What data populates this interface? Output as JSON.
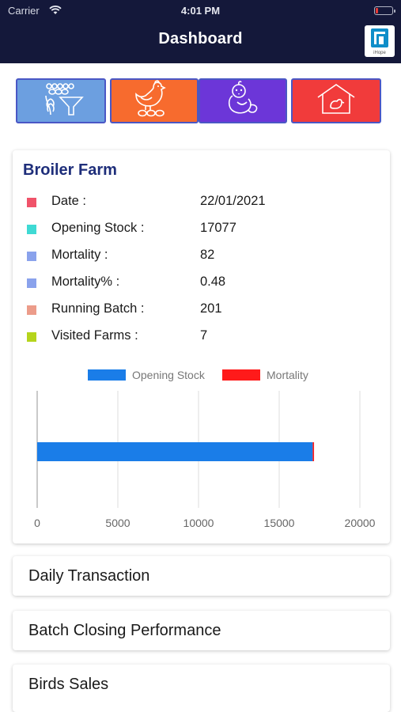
{
  "status_bar": {
    "carrier": "Carrier",
    "time": "4:01 PM"
  },
  "header": {
    "title": "Dashboard",
    "logo_text": "iHope"
  },
  "modules": [
    {
      "name": "feed-module",
      "icon": "feed-funnel-icon",
      "color": "#6c9fe0"
    },
    {
      "name": "hen-module",
      "icon": "hen-icon",
      "color": "#f76b2e"
    },
    {
      "name": "chick-module",
      "icon": "chick-icon",
      "color": "#6c36d8"
    },
    {
      "name": "farm-house-module",
      "icon": "farm-house-icon",
      "color": "#f13b3b"
    }
  ],
  "broiler_farm": {
    "title": "Broiler Farm",
    "rows": [
      {
        "label": "Date :",
        "value": "22/01/2021",
        "color": "#f0536a"
      },
      {
        "label": "Opening Stock :",
        "value": "17077",
        "color": "#3fdad4"
      },
      {
        "label": "Mortality :",
        "value": "82",
        "color": "#8aa2ec"
      },
      {
        "label": "Mortality% :",
        "value": "0.48",
        "color": "#8aa2ec"
      },
      {
        "label": "Running Batch :",
        "value": "201",
        "color": "#ec9c8a"
      },
      {
        "label": "Visited Farms :",
        "value": "7",
        "color": "#b5d41c"
      }
    ]
  },
  "chart_data": {
    "type": "bar",
    "orientation": "horizontal",
    "stacked": true,
    "categories": [
      ""
    ],
    "series": [
      {
        "name": "Opening Stock",
        "values": [
          17077
        ],
        "color": "#1a7de8"
      },
      {
        "name": "Mortality",
        "values": [
          82
        ],
        "color": "#ff1a1a"
      }
    ],
    "xlim": [
      0,
      20000
    ],
    "xticks": [
      "0",
      "5000",
      "10000",
      "15000",
      "20000"
    ],
    "legend": "top",
    "grid": true
  },
  "sections": [
    "Daily Transaction",
    "Batch Closing Performance",
    "Birds Sales"
  ]
}
